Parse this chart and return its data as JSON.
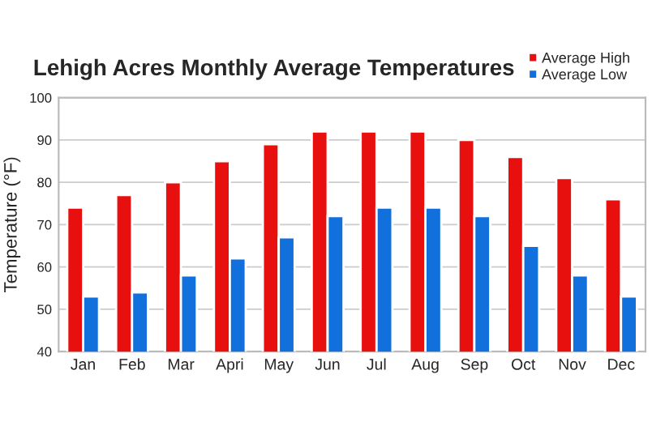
{
  "chart_data": {
    "type": "bar",
    "title": "Lehigh Acres Monthly Average Temperatures",
    "ylabel": "Temperature (°F)",
    "categories": [
      "Jan",
      "Feb",
      "Mar",
      "Apri",
      "May",
      "Jun",
      "Jul",
      "Aug",
      "Sep",
      "Oct",
      "Nov",
      "Dec"
    ],
    "series": [
      {
        "name": "Average High",
        "color": "#e8100f",
        "values": [
          74,
          77,
          80,
          85,
          89,
          92,
          92,
          92,
          90,
          86,
          81,
          76
        ]
      },
      {
        "name": "Average Low",
        "color": "#1170dc",
        "values": [
          53,
          54,
          58,
          62,
          67,
          72,
          74,
          74,
          72,
          65,
          58,
          53
        ]
      }
    ],
    "ylim": [
      40,
      100
    ],
    "yticks": [
      40,
      50,
      60,
      70,
      80,
      90,
      100
    ],
    "grid": "y",
    "legend": "top right"
  }
}
